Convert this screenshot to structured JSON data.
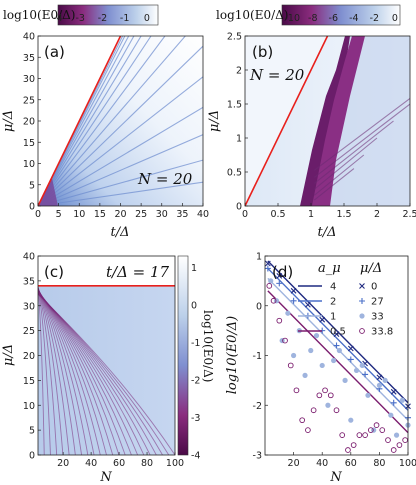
{
  "chart_data": [
    {
      "type": "heatmap",
      "panel_label": "(a)",
      "annotation": "N = 20",
      "xlabel": "t/Δ",
      "ylabel": "μ/Δ",
      "xlim": [
        0,
        40
      ],
      "ylim": [
        0,
        40
      ],
      "xticks": [
        "0",
        "5",
        "10",
        "15",
        "20",
        "25",
        "30",
        "35",
        "40"
      ],
      "yticks": [
        "0",
        "5",
        "10",
        "15",
        "20",
        "25",
        "30",
        "35",
        "40"
      ],
      "colorbar": {
        "label": "log10(E0/Δ)",
        "range": [
          -4,
          0.5
        ],
        "ticks": [
          "-4",
          "-3",
          "-2",
          "-1",
          "0"
        ],
        "position": "top"
      },
      "red_line": {
        "x": [
          0,
          20
        ],
        "y": [
          0,
          40
        ],
        "color": "#e8201c"
      },
      "ray_slopes": [
        1.95,
        1.9,
        1.82,
        1.72,
        1.6,
        1.46,
        1.3,
        1.12,
        0.94,
        0.76,
        0.58,
        0.42,
        0.27,
        0.14
      ]
    },
    {
      "type": "heatmap",
      "panel_label": "(b)",
      "annotation": "N = 20",
      "xlabel": "t/Δ",
      "ylabel": "μ/Δ",
      "xlim": [
        0,
        2.5
      ],
      "ylim": [
        0,
        2.5
      ],
      "xticks": [
        "0",
        "0.5",
        "1",
        "1.5",
        "2",
        "2.5"
      ],
      "yticks": [
        "0",
        "0.5",
        "1",
        "1.5",
        "2",
        "2.5"
      ],
      "colorbar": {
        "label": "log10(E0/Δ)",
        "range": [
          -11,
          0.5
        ],
        "ticks": [
          "-10",
          "-8",
          "-6",
          "-4",
          "-2",
          "0"
        ],
        "position": "top"
      },
      "red_line": {
        "x": [
          0,
          1.25
        ],
        "y": [
          0,
          2.5
        ],
        "color": "#e8201c"
      }
    },
    {
      "type": "heatmap",
      "panel_label": "(c)",
      "annotation": "t/Δ = 17",
      "xlabel": "N",
      "ylabel": "μ/Δ",
      "xlim": [
        2,
        100
      ],
      "ylim": [
        0,
        40
      ],
      "xticks": [
        "20",
        "40",
        "60",
        "80",
        "100"
      ],
      "yticks": [
        "0",
        "5",
        "10",
        "15",
        "20",
        "25",
        "30",
        "35",
        "40"
      ],
      "colorbar": {
        "label": "log10(E0/Δ)",
        "range": [
          -4,
          1.3
        ],
        "ticks": [
          "-4",
          "-3",
          "-2",
          "-1",
          "0",
          "1"
        ],
        "position": "right"
      },
      "red_line": {
        "y": 34,
        "color": "#e8201c"
      }
    },
    {
      "type": "line",
      "panel_label": "(d)",
      "xlabel": "N",
      "ylabel": "log10(E0/Δ)",
      "xlim": [
        0,
        100
      ],
      "ylim": [
        -3,
        1
      ],
      "xticks": [
        "20",
        "40",
        "60",
        "80",
        "100"
      ],
      "yticks": [
        "-3",
        "-2",
        "-1",
        "0",
        "1"
      ],
      "legend": {
        "line_header": "a_μ",
        "marker_header": "μ/Δ",
        "placement": "top-right",
        "lines": [
          {
            "label": "4",
            "color": "#1f2a80"
          },
          {
            "label": "2",
            "color": "#4a6fc8"
          },
          {
            "label": "1",
            "color": "#9fb4de"
          },
          {
            "label": "0.5",
            "color": "#7b1d6e"
          }
        ],
        "markers": [
          {
            "label": "0",
            "symbol": "x",
            "color": "#1f2a80"
          },
          {
            "label": "27",
            "symbol": "+",
            "color": "#4a6fc8"
          },
          {
            "label": "33",
            "symbol": "dot",
            "color": "#9fb4de"
          },
          {
            "label": "33.8",
            "symbol": "circle",
            "color": "#7b1d6e"
          }
        ]
      },
      "series": [
        {
          "name": "4",
          "x": [
            2,
            100
          ],
          "y": [
            0.9,
            -1.95
          ]
        },
        {
          "name": "2",
          "x": [
            2,
            100
          ],
          "y": [
            0.75,
            -2.1
          ]
        },
        {
          "name": "1",
          "x": [
            2,
            100
          ],
          "y": [
            0.55,
            -2.3
          ]
        },
        {
          "name": "0.5",
          "x": [
            2,
            100
          ],
          "y": [
            0.3,
            -2.55
          ]
        },
        {
          "name": "0",
          "x": [
            2,
            10,
            20,
            30,
            40,
            50,
            60,
            70,
            80,
            90,
            100
          ],
          "y": [
            0.85,
            0.6,
            0.3,
            0.02,
            -0.28,
            -0.57,
            -0.86,
            -1.16,
            -1.44,
            -1.73,
            -2.02
          ]
        },
        {
          "name": "27",
          "x": [
            2,
            10,
            20,
            30,
            40,
            50,
            60,
            70,
            80,
            90,
            100
          ],
          "y": [
            0.75,
            0.45,
            0.1,
            -0.2,
            -0.5,
            -0.8,
            -1.08,
            -1.38,
            -1.67,
            -1.95,
            -2.25
          ]
        },
        {
          "name": "33",
          "x": [
            4,
            8,
            12,
            16,
            20,
            24,
            28,
            32,
            36,
            40,
            44,
            48,
            52,
            56,
            60,
            64,
            68,
            72,
            76,
            80,
            84,
            88,
            92,
            96,
            100
          ],
          "y": [
            0.5,
            0.1,
            -0.7,
            -0.15,
            -1.0,
            -0.5,
            -1.4,
            -0.9,
            -0.6,
            -1.2,
            -2.0,
            -1.1,
            -0.9,
            -1.5,
            -2.3,
            -1.3,
            -1.2,
            -1.8,
            -2.5,
            -1.6,
            -1.5,
            -2.2,
            -2.6,
            -1.9,
            -2.4
          ]
        },
        {
          "name": "33.8",
          "x": [
            3,
            6,
            10,
            14,
            18,
            22,
            26,
            30,
            34,
            38,
            42,
            46,
            50,
            54,
            58,
            62,
            66,
            70,
            74,
            78,
            82,
            86,
            90,
            94,
            98
          ],
          "y": [
            0.4,
            0.1,
            -0.3,
            -0.7,
            -1.2,
            -1.7,
            -2.3,
            -2.5,
            -2.1,
            -1.8,
            -1.7,
            -1.8,
            -2.1,
            -2.6,
            -2.9,
            -2.8,
            -2.6,
            -2.6,
            -2.5,
            -2.4,
            -2.5,
            -2.7,
            -2.9,
            -2.8,
            -2.7
          ]
        }
      ]
    }
  ]
}
